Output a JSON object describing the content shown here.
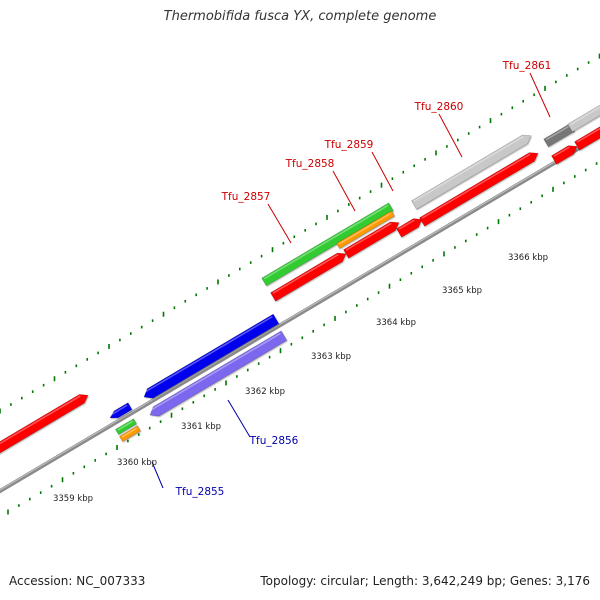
{
  "title": "Thermobifida fusca YX, complete genome",
  "footer": {
    "accession": "Accession: NC_007333",
    "summary": "Topology: circular; Length: 3,642,249 bp; Genes: 3,176"
  },
  "colors": {
    "backbone": "#8f8f8f",
    "forward_label": "#cc0000",
    "reverse_label": "#0000aa",
    "cds": "#ff0000",
    "gene": "#33cc33",
    "rna": "#ff9900",
    "blue_cds": "#0000ee",
    "pseudo": "#7b68ee",
    "gray": "#c8c8c8",
    "darkgray": "#777777",
    "tick": "#007700"
  },
  "scale_labels": [
    "3359 kbp",
    "3360 kbp",
    "3361 kbp",
    "3362 kbp",
    "3363 kbp",
    "3364 kbp",
    "3365 kbp",
    "3366 kbp"
  ],
  "gene_labels": [
    "Tfu_2855",
    "Tfu_2856",
    "Tfu_2857",
    "Tfu_2858",
    "Tfu_2859",
    "Tfu_2860",
    "Tfu_2861"
  ]
}
